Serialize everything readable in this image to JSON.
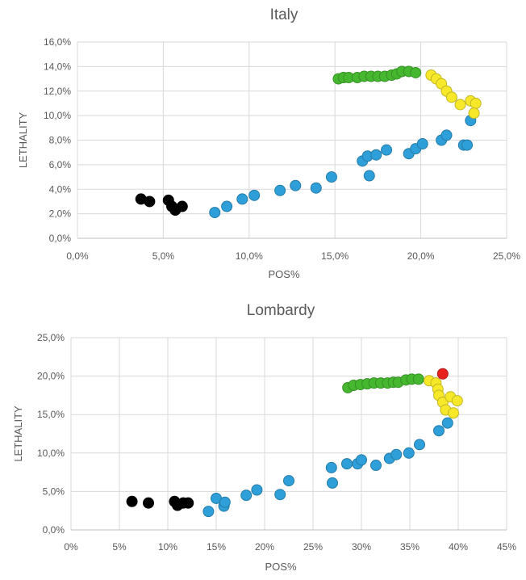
{
  "chart_data": [
    {
      "type": "scatter",
      "title": "Italy",
      "xlabel": "POS%",
      "ylabel": "LETHALITY",
      "xlim": [
        0,
        25
      ],
      "ylim": [
        0,
        16
      ],
      "x_ticks": [
        "0,0%",
        "5,0%",
        "10,0%",
        "15,0%",
        "20,0%",
        "25,0%"
      ],
      "y_ticks": [
        "0,0%",
        "2,0%",
        "4,0%",
        "6,0%",
        "8,0%",
        "10,0%",
        "12,0%",
        "14,0%",
        "16,0%"
      ],
      "grid": true,
      "legend": "none",
      "series": [
        {
          "color": "#000000",
          "points": [
            [
              3.7,
              3.2
            ],
            [
              4.2,
              3.0
            ],
            [
              5.3,
              3.1
            ],
            [
              5.5,
              2.6
            ],
            [
              5.7,
              2.3
            ],
            [
              6.1,
              2.6
            ]
          ]
        },
        {
          "color": "#2e9fd8",
          "points": [
            [
              8.0,
              2.1
            ],
            [
              8.7,
              2.6
            ],
            [
              9.6,
              3.2
            ],
            [
              10.3,
              3.5
            ],
            [
              11.8,
              3.9
            ],
            [
              12.7,
              4.3
            ],
            [
              13.9,
              4.1
            ],
            [
              14.8,
              5.0
            ],
            [
              16.6,
              6.3
            ],
            [
              16.9,
              6.7
            ],
            [
              17.0,
              5.1
            ],
            [
              17.4,
              6.8
            ],
            [
              18.0,
              7.2
            ],
            [
              19.3,
              6.9
            ],
            [
              19.7,
              7.3
            ],
            [
              20.1,
              7.7
            ],
            [
              21.2,
              8.0
            ],
            [
              21.5,
              8.4
            ],
            [
              22.5,
              7.6
            ],
            [
              22.7,
              7.6
            ],
            [
              22.9,
              9.6
            ]
          ]
        },
        {
          "color": "#45b82f",
          "points": [
            [
              15.2,
              13.0
            ],
            [
              15.5,
              13.1
            ],
            [
              15.8,
              13.1
            ],
            [
              16.3,
              13.1
            ],
            [
              16.7,
              13.2
            ],
            [
              17.1,
              13.2
            ],
            [
              17.5,
              13.2
            ],
            [
              17.9,
              13.2
            ],
            [
              18.3,
              13.3
            ],
            [
              18.6,
              13.4
            ],
            [
              18.9,
              13.6
            ],
            [
              19.3,
              13.6
            ],
            [
              19.7,
              13.5
            ]
          ]
        },
        {
          "color": "#f7e92a",
          "points": [
            [
              20.6,
              13.3
            ],
            [
              20.9,
              13.0
            ],
            [
              21.2,
              12.6
            ],
            [
              21.5,
              12.0
            ],
            [
              21.8,
              11.5
            ],
            [
              22.3,
              10.9
            ],
            [
              22.9,
              11.2
            ],
            [
              23.2,
              11.0
            ],
            [
              23.1,
              10.2
            ]
          ]
        }
      ]
    },
    {
      "type": "scatter",
      "title": "Lombardy",
      "xlabel": "POS%",
      "ylabel": "LETHALITY",
      "xlim": [
        0,
        45
      ],
      "ylim": [
        0,
        25
      ],
      "x_ticks": [
        "0%",
        "5%",
        "10%",
        "15%",
        "20%",
        "25%",
        "30%",
        "35%",
        "40%",
        "45%"
      ],
      "y_ticks": [
        "0,0%",
        "5,0%",
        "10,0%",
        "15,0%",
        "20,0%",
        "25,0%"
      ],
      "grid": true,
      "legend": "none",
      "series": [
        {
          "color": "#000000",
          "points": [
            [
              6.3,
              3.7
            ],
            [
              8.0,
              3.5
            ],
            [
              10.7,
              3.7
            ],
            [
              11.0,
              3.2
            ],
            [
              11.6,
              3.5
            ],
            [
              12.1,
              3.5
            ]
          ]
        },
        {
          "color": "#2e9fd8",
          "points": [
            [
              14.2,
              2.4
            ],
            [
              15.0,
              4.1
            ],
            [
              15.8,
              3.1
            ],
            [
              15.9,
              3.6
            ],
            [
              18.1,
              4.5
            ],
            [
              19.2,
              5.2
            ],
            [
              21.6,
              4.6
            ],
            [
              22.5,
              6.4
            ],
            [
              27.0,
              6.1
            ],
            [
              26.9,
              8.1
            ],
            [
              28.5,
              8.6
            ],
            [
              29.6,
              8.6
            ],
            [
              30.0,
              9.1
            ],
            [
              31.5,
              8.4
            ],
            [
              32.9,
              9.3
            ],
            [
              33.6,
              9.8
            ],
            [
              34.9,
              10.0
            ],
            [
              36.0,
              11.1
            ],
            [
              38.0,
              12.9
            ],
            [
              38.9,
              13.9
            ]
          ]
        },
        {
          "color": "#45b82f",
          "points": [
            [
              28.6,
              18.5
            ],
            [
              29.2,
              18.8
            ],
            [
              29.9,
              18.9
            ],
            [
              30.6,
              19.0
            ],
            [
              31.3,
              19.1
            ],
            [
              32.0,
              19.1
            ],
            [
              32.7,
              19.1
            ],
            [
              33.3,
              19.2
            ],
            [
              33.8,
              19.2
            ],
            [
              34.6,
              19.5
            ],
            [
              35.2,
              19.6
            ],
            [
              35.9,
              19.6
            ]
          ]
        },
        {
          "color": "#f7e92a",
          "points": [
            [
              37.0,
              19.4
            ],
            [
              37.7,
              19.1
            ],
            [
              37.9,
              18.3
            ],
            [
              38.0,
              17.5
            ],
            [
              38.4,
              16.6
            ],
            [
              38.7,
              15.6
            ],
            [
              39.2,
              17.3
            ],
            [
              39.5,
              15.2
            ],
            [
              39.9,
              16.8
            ]
          ]
        },
        {
          "color": "#e8231f",
          "points": [
            [
              38.4,
              20.3
            ]
          ]
        }
      ]
    }
  ]
}
